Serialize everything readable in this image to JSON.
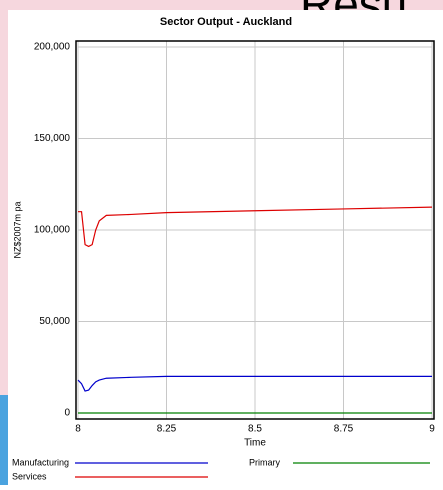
{
  "background_text": "Resu",
  "chart_data": {
    "type": "line",
    "title": "Sector Output - Auckland",
    "x_label": "Time",
    "y_label": "NZ$2007m pa",
    "x": [
      8,
      8.01,
      8.02,
      8.03,
      8.04,
      8.05,
      8.06,
      8.08,
      8.15,
      8.25,
      8.5,
      8.75,
      9
    ],
    "series": [
      {
        "name": "Manufacturing",
        "color": "#0000cc",
        "values": [
          18000,
          16000,
          12000,
          12500,
          15000,
          17000,
          18000,
          19000,
          19500,
          20000,
          20000,
          20000,
          20000
        ]
      },
      {
        "name": "Primary",
        "color": "#008000",
        "values": [
          0,
          0,
          0,
          0,
          0,
          0,
          0,
          0,
          0,
          0,
          0,
          0,
          0
        ]
      },
      {
        "name": "Services",
        "color": "#dd0000",
        "values": [
          110000,
          110000,
          92000,
          91000,
          92000,
          100000,
          105000,
          108000,
          108500,
          109500,
          110500,
          111500,
          112500
        ]
      }
    ],
    "xlim": [
      8,
      9
    ],
    "xticks": [
      8,
      8.25,
      8.5,
      8.75,
      9
    ],
    "ylim": [
      0,
      200000
    ],
    "yticks": [
      0,
      {
        "value": 50000,
        "label": "50,000"
      },
      {
        "value": 100000,
        "label": "100,000"
      },
      {
        "value": 150000,
        "label": "150,000"
      },
      {
        "value": 200000,
        "label": "200,000"
      }
    ],
    "grid": true,
    "legend": "bottom"
  }
}
